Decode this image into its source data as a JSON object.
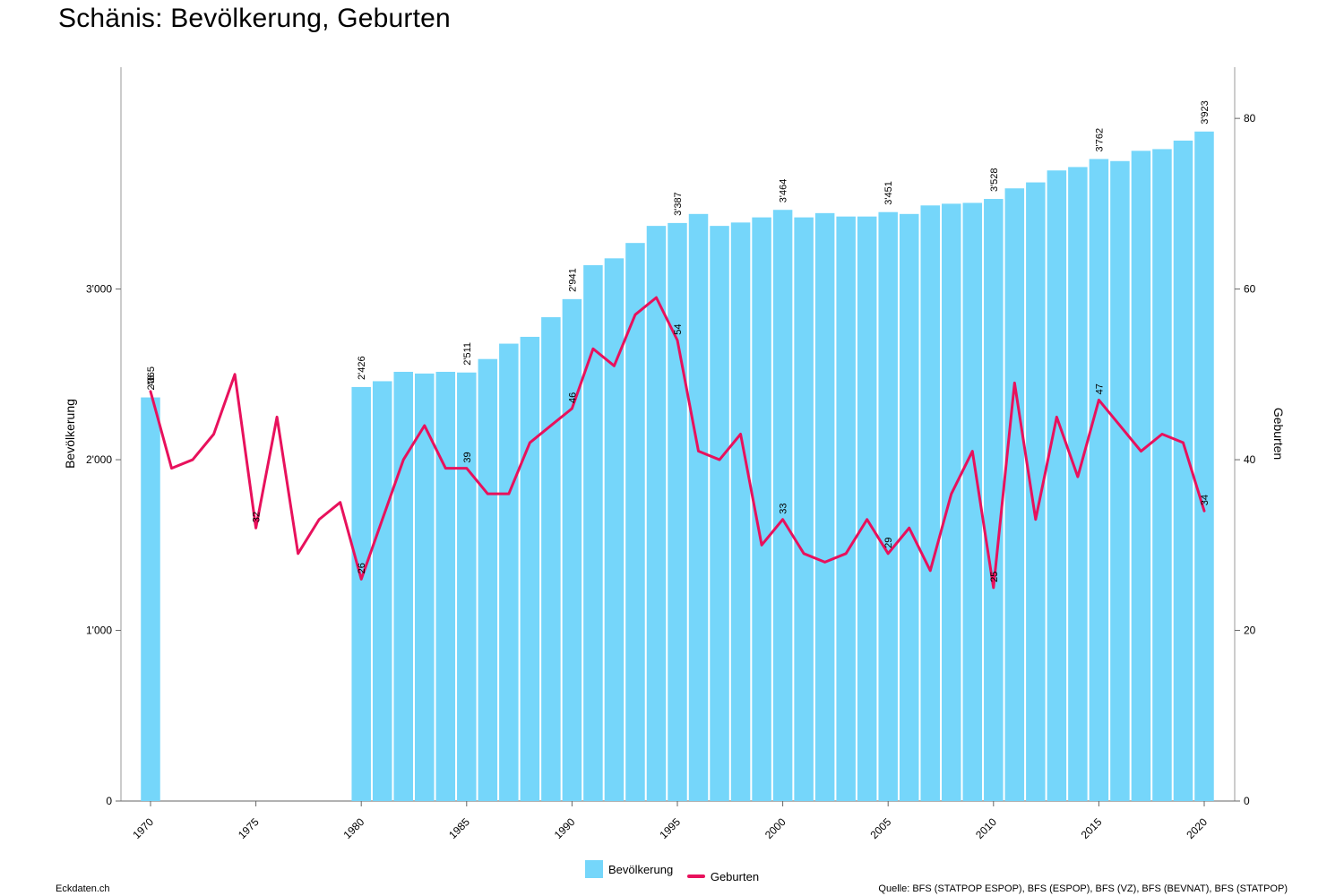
{
  "title": "Schänis: Bevölkerung, Geburten",
  "footer": {
    "left": "Eckdaten.ch",
    "right": "Quelle: BFS (STATPOP ESPOP), BFS (ESPOP), BFS (VZ), BFS (BEVNAT), BFS (STATPOP)"
  },
  "chart_data": {
    "type": "bar",
    "ylabel": "Bevölkerung",
    "y2label": "Geburten",
    "ylim": [
      0,
      4300
    ],
    "y2lim": [
      0,
      86
    ],
    "y_ticks": [
      0,
      1000,
      2000,
      3000
    ],
    "y_tick_labels": [
      "0",
      "1'000",
      "2'000",
      "3'000"
    ],
    "y2_ticks": [
      0,
      20,
      40,
      60,
      80
    ],
    "x_ticks": [
      1970,
      1975,
      1980,
      1985,
      1990,
      1995,
      2000,
      2005,
      2010,
      2015,
      2020
    ],
    "x": [
      1970,
      1971,
      1972,
      1973,
      1974,
      1975,
      1976,
      1977,
      1978,
      1979,
      1980,
      1981,
      1982,
      1983,
      1984,
      1985,
      1986,
      1987,
      1988,
      1989,
      1990,
      1991,
      1992,
      1993,
      1994,
      1995,
      1996,
      1997,
      1998,
      1999,
      2000,
      2001,
      2002,
      2003,
      2004,
      2005,
      2006,
      2007,
      2008,
      2009,
      2010,
      2011,
      2012,
      2013,
      2014,
      2015,
      2016,
      2017,
      2018,
      2019,
      2020
    ],
    "series": [
      {
        "name": "Bevölkerung",
        "type": "bar",
        "color": "#75d6fa",
        "values": [
          2365,
          null,
          null,
          null,
          null,
          null,
          null,
          null,
          null,
          null,
          2426,
          2460,
          2515,
          2505,
          2515,
          2511,
          2590,
          2680,
          2720,
          2835,
          2941,
          3140,
          3180,
          3270,
          3370,
          3387,
          3440,
          3370,
          3390,
          3420,
          3464,
          3420,
          3445,
          3425,
          3425,
          3451,
          3440,
          3490,
          3500,
          3505,
          3528,
          3590,
          3625,
          3695,
          3715,
          3762,
          3750,
          3810,
          3820,
          3870,
          3923
        ]
      },
      {
        "name": "Geburten",
        "type": "line",
        "color": "#e8115c",
        "values": [
          48,
          39,
          40,
          43,
          50,
          32,
          45,
          29,
          33,
          35,
          26,
          33,
          40,
          44,
          39,
          39,
          36,
          36,
          42,
          44,
          46,
          53,
          51,
          57,
          59,
          54,
          41,
          40,
          43,
          30,
          33,
          29,
          28,
          29,
          33,
          29,
          32,
          27,
          36,
          41,
          25,
          49,
          33,
          45,
          38,
          47,
          44,
          41,
          43,
          42,
          34
        ]
      }
    ],
    "bar_value_labels": [
      {
        "year": 1970,
        "text": "2'365"
      },
      {
        "year": 1980,
        "text": "2'426"
      },
      {
        "year": 1985,
        "text": "2'511"
      },
      {
        "year": 1990,
        "text": "2'941"
      },
      {
        "year": 1995,
        "text": "3'387"
      },
      {
        "year": 2000,
        "text": "3'464"
      },
      {
        "year": 2005,
        "text": "3'451"
      },
      {
        "year": 2010,
        "text": "3'528"
      },
      {
        "year": 2015,
        "text": "3'762"
      },
      {
        "year": 2020,
        "text": "3'923"
      }
    ],
    "line_value_labels": [
      {
        "year": 1970,
        "text": "48"
      },
      {
        "year": 1975,
        "text": "32"
      },
      {
        "year": 1980,
        "text": "26"
      },
      {
        "year": 1985,
        "text": "39"
      },
      {
        "year": 1990,
        "text": "46"
      },
      {
        "year": 1995,
        "text": "54"
      },
      {
        "year": 2000,
        "text": "33"
      },
      {
        "year": 2005,
        "text": "29"
      },
      {
        "year": 2010,
        "text": "25"
      },
      {
        "year": 2015,
        "text": "47"
      },
      {
        "year": 2020,
        "text": "34"
      }
    ],
    "legend": {
      "position": "bottom-center",
      "entries": [
        "Bevölkerung",
        "Geburten"
      ]
    }
  }
}
